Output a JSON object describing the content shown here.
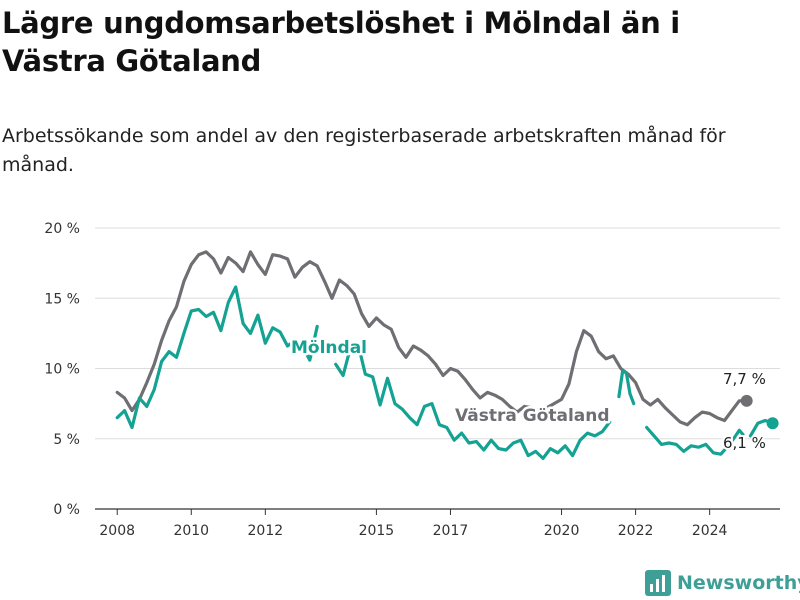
{
  "title": "Lägre ungdomsarbetslöshet i Mölndal än i Västra Götaland",
  "subtitle": "Arbetssökande som andel av den registerbaserade arbetskraften månad för månad.",
  "brand": "Newsworthy",
  "colors": {
    "molndal": "#14a293",
    "vastra": "#6e6e73",
    "grid": "#dddddd",
    "axis": "#333333"
  },
  "chart_data": {
    "type": "line",
    "xlim": [
      2007.4,
      2025.9
    ],
    "ylim": [
      0,
      20
    ],
    "yticks": [
      0,
      5,
      10,
      15,
      20
    ],
    "ytick_labels": [
      "0 %",
      "5 %",
      "10 %",
      "15 %",
      "20 %"
    ],
    "xticks": [
      2008,
      2010,
      2012,
      2015,
      2017,
      2020,
      2022,
      2024
    ],
    "xtick_labels": [
      "2008",
      "2010",
      "2012",
      "2015",
      "2017",
      "2020",
      "2022",
      "2024"
    ],
    "grid": true,
    "series": [
      {
        "name": "Västra Götaland",
        "key": "vastra",
        "end_label": "7,7 %",
        "points": [
          [
            2008.0,
            8.3
          ],
          [
            2008.2,
            7.9
          ],
          [
            2008.4,
            7.0
          ],
          [
            2008.6,
            7.8
          ],
          [
            2008.8,
            9.0
          ],
          [
            2009.0,
            10.3
          ],
          [
            2009.2,
            12.0
          ],
          [
            2009.4,
            13.4
          ],
          [
            2009.6,
            14.4
          ],
          [
            2009.8,
            16.2
          ],
          [
            2010.0,
            17.4
          ],
          [
            2010.2,
            18.1
          ],
          [
            2010.4,
            18.3
          ],
          [
            2010.6,
            17.8
          ],
          [
            2010.8,
            16.8
          ],
          [
            2011.0,
            17.9
          ],
          [
            2011.2,
            17.5
          ],
          [
            2011.4,
            16.9
          ],
          [
            2011.6,
            18.3
          ],
          [
            2011.8,
            17.4
          ],
          [
            2012.0,
            16.7
          ],
          [
            2012.2,
            18.1
          ],
          [
            2012.4,
            18.0
          ],
          [
            2012.6,
            17.8
          ],
          [
            2012.8,
            16.5
          ],
          [
            2013.0,
            17.2
          ],
          [
            2013.2,
            17.6
          ],
          [
            2013.4,
            17.3
          ],
          [
            2013.6,
            16.2
          ],
          [
            2013.8,
            15.0
          ],
          [
            2014.0,
            16.3
          ],
          [
            2014.2,
            15.9
          ],
          [
            2014.4,
            15.3
          ],
          [
            2014.6,
            13.9
          ],
          [
            2014.8,
            13.0
          ],
          [
            2015.0,
            13.6
          ],
          [
            2015.2,
            13.1
          ],
          [
            2015.4,
            12.8
          ],
          [
            2015.6,
            11.5
          ],
          [
            2015.8,
            10.8
          ],
          [
            2016.0,
            11.6
          ],
          [
            2016.2,
            11.3
          ],
          [
            2016.4,
            10.9
          ],
          [
            2016.6,
            10.3
          ],
          [
            2016.8,
            9.5
          ],
          [
            2017.0,
            10.0
          ],
          [
            2017.2,
            9.8
          ],
          [
            2017.4,
            9.2
          ],
          [
            2017.6,
            8.5
          ],
          [
            2017.8,
            7.9
          ],
          [
            2018.0,
            8.3
          ],
          [
            2018.2,
            8.1
          ],
          [
            2018.4,
            7.8
          ],
          [
            2018.6,
            7.3
          ],
          [
            2018.8,
            6.9
          ],
          [
            2019.0,
            7.3
          ],
          [
            2019.2,
            7.2
          ],
          [
            2019.4,
            7.0
          ],
          [
            2019.6,
            7.2
          ],
          [
            2019.8,
            7.5
          ],
          [
            2020.0,
            7.8
          ],
          [
            2020.2,
            8.9
          ],
          [
            2020.4,
            11.2
          ],
          [
            2020.6,
            12.7
          ],
          [
            2020.8,
            12.3
          ],
          [
            2021.0,
            11.2
          ],
          [
            2021.2,
            10.7
          ],
          [
            2021.4,
            10.9
          ],
          [
            2021.6,
            10.0
          ],
          [
            2021.8,
            9.6
          ],
          [
            2022.0,
            9.0
          ],
          [
            2022.2,
            7.8
          ],
          [
            2022.4,
            7.4
          ],
          [
            2022.6,
            7.8
          ],
          [
            2022.8,
            7.2
          ],
          [
            2023.0,
            6.7
          ],
          [
            2023.2,
            6.2
          ],
          [
            2023.4,
            6.0
          ],
          [
            2023.6,
            6.5
          ],
          [
            2023.8,
            6.9
          ],
          [
            2024.0,
            6.8
          ],
          [
            2024.2,
            6.5
          ],
          [
            2024.4,
            6.3
          ],
          [
            2024.6,
            7.0
          ],
          [
            2024.8,
            7.7
          ],
          [
            2025.0,
            7.7
          ]
        ]
      },
      {
        "name": "Mölndal",
        "key": "molndal",
        "end_label": "6,1 %",
        "points": [
          [
            2008.0,
            6.5
          ],
          [
            2008.2,
            7.0
          ],
          [
            2008.4,
            5.8
          ],
          [
            2008.6,
            7.9
          ],
          [
            2008.8,
            7.3
          ],
          [
            2009.0,
            8.5
          ],
          [
            2009.2,
            10.5
          ],
          [
            2009.4,
            11.2
          ],
          [
            2009.6,
            10.8
          ],
          [
            2009.8,
            12.5
          ],
          [
            2010.0,
            14.1
          ],
          [
            2010.2,
            14.2
          ],
          [
            2010.4,
            13.7
          ],
          [
            2010.6,
            14.0
          ],
          [
            2010.8,
            12.7
          ],
          [
            2011.0,
            14.7
          ],
          [
            2011.2,
            15.8
          ],
          [
            2011.4,
            13.2
          ],
          [
            2011.6,
            12.5
          ],
          [
            2011.8,
            13.8
          ],
          [
            2012.0,
            11.8
          ],
          [
            2012.2,
            12.9
          ],
          [
            2012.4,
            12.6
          ],
          [
            2012.6,
            11.6
          ],
          [
            2012.8,
            12.0
          ],
          [
            2013.0,
            11.6
          ],
          [
            2013.2,
            10.6
          ],
          [
            2013.4,
            13.0
          ]
        ],
        "points_2": [
          [
            2013.9,
            10.3
          ],
          [
            2014.1,
            9.5
          ],
          [
            2014.3,
            11.5
          ],
          [
            2014.5,
            11.8
          ],
          [
            2014.7,
            9.6
          ],
          [
            2014.9,
            9.4
          ],
          [
            2015.1,
            7.4
          ],
          [
            2015.3,
            9.3
          ],
          [
            2015.5,
            7.5
          ],
          [
            2015.7,
            7.1
          ],
          [
            2015.9,
            6.5
          ],
          [
            2016.1,
            6.0
          ],
          [
            2016.3,
            7.3
          ],
          [
            2016.5,
            7.5
          ],
          [
            2016.7,
            6.0
          ],
          [
            2016.9,
            5.8
          ],
          [
            2017.1,
            4.9
          ],
          [
            2017.3,
            5.4
          ],
          [
            2017.5,
            4.7
          ],
          [
            2017.7,
            4.8
          ],
          [
            2017.9,
            4.2
          ],
          [
            2018.1,
            4.9
          ],
          [
            2018.3,
            4.3
          ],
          [
            2018.5,
            4.2
          ],
          [
            2018.7,
            4.7
          ],
          [
            2018.9,
            4.9
          ],
          [
            2019.1,
            3.8
          ],
          [
            2019.3,
            4.1
          ],
          [
            2019.5,
            3.6
          ],
          [
            2019.7,
            4.3
          ],
          [
            2019.9,
            4.0
          ],
          [
            2020.1,
            4.5
          ],
          [
            2020.3,
            3.8
          ],
          [
            2020.5,
            4.9
          ],
          [
            2020.7,
            5.4
          ],
          [
            2020.9,
            5.2
          ],
          [
            2021.1,
            5.5
          ],
          [
            2021.3,
            6.2
          ]
        ],
        "points_3": [
          [
            2021.55,
            8.0
          ],
          [
            2021.65,
            9.8
          ],
          [
            2021.75,
            9.7
          ],
          [
            2021.85,
            8.2
          ],
          [
            2021.95,
            7.5
          ]
        ],
        "points_4": [
          [
            2022.3,
            5.8
          ],
          [
            2022.5,
            5.2
          ],
          [
            2022.7,
            4.6
          ],
          [
            2022.9,
            4.7
          ],
          [
            2023.1,
            4.6
          ],
          [
            2023.3,
            4.1
          ],
          [
            2023.5,
            4.5
          ],
          [
            2023.7,
            4.4
          ],
          [
            2023.9,
            4.6
          ],
          [
            2024.1,
            4.0
          ],
          [
            2024.3,
            3.9
          ],
          [
            2024.5,
            4.5
          ],
          [
            2024.7,
            5.2
          ],
          [
            2024.8,
            5.6
          ],
          [
            2024.9,
            5.3
          ]
        ],
        "points_5": [
          [
            2025.1,
            5.2
          ],
          [
            2025.3,
            6.1
          ],
          [
            2025.5,
            6.3
          ],
          [
            2025.7,
            6.1
          ]
        ]
      }
    ]
  }
}
